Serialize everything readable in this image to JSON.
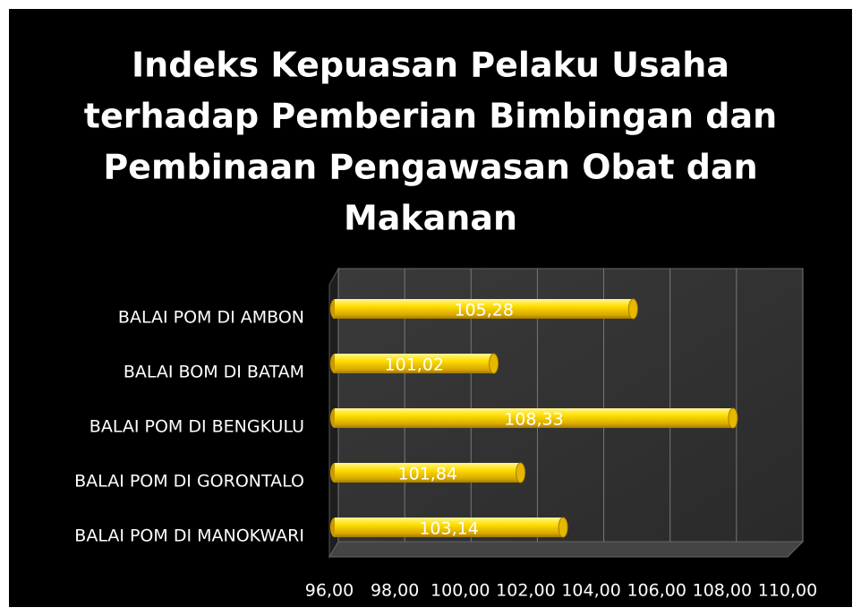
{
  "chart_data": {
    "type": "bar",
    "orientation": "horizontal",
    "title": [
      "Indeks Kepuasan Pelaku Usaha",
      "terhadap Pemberian Bimbingan dan",
      "Pembinaan Pengawasan Obat dan",
      "Makanan"
    ],
    "categories": [
      "BALAI POM DI AMBON",
      "BALAI BOM DI BATAM",
      "BALAI POM DI BENGKULU",
      "BALAI POM DI GORONTALO",
      "BALAI POM DI MANOKWARI"
    ],
    "values": [
      105.28,
      101.02,
      108.33,
      101.84,
      103.14
    ],
    "value_labels": [
      "105,28",
      "101,02",
      "108,33",
      "101,84",
      "103,14"
    ],
    "color": "#ffd700",
    "xlim": [
      96,
      110
    ],
    "xticks": [
      {
        "value": 96,
        "label": "96,00"
      },
      {
        "value": 98,
        "label": "98,00"
      },
      {
        "value": 100,
        "label": "100,00"
      },
      {
        "value": 102,
        "label": "102,00"
      },
      {
        "value": 104,
        "label": "104,00"
      },
      {
        "value": 106,
        "label": "106,00"
      },
      {
        "value": 108,
        "label": "108,00"
      },
      {
        "value": 110,
        "label": "110,00"
      }
    ],
    "grid": true
  }
}
